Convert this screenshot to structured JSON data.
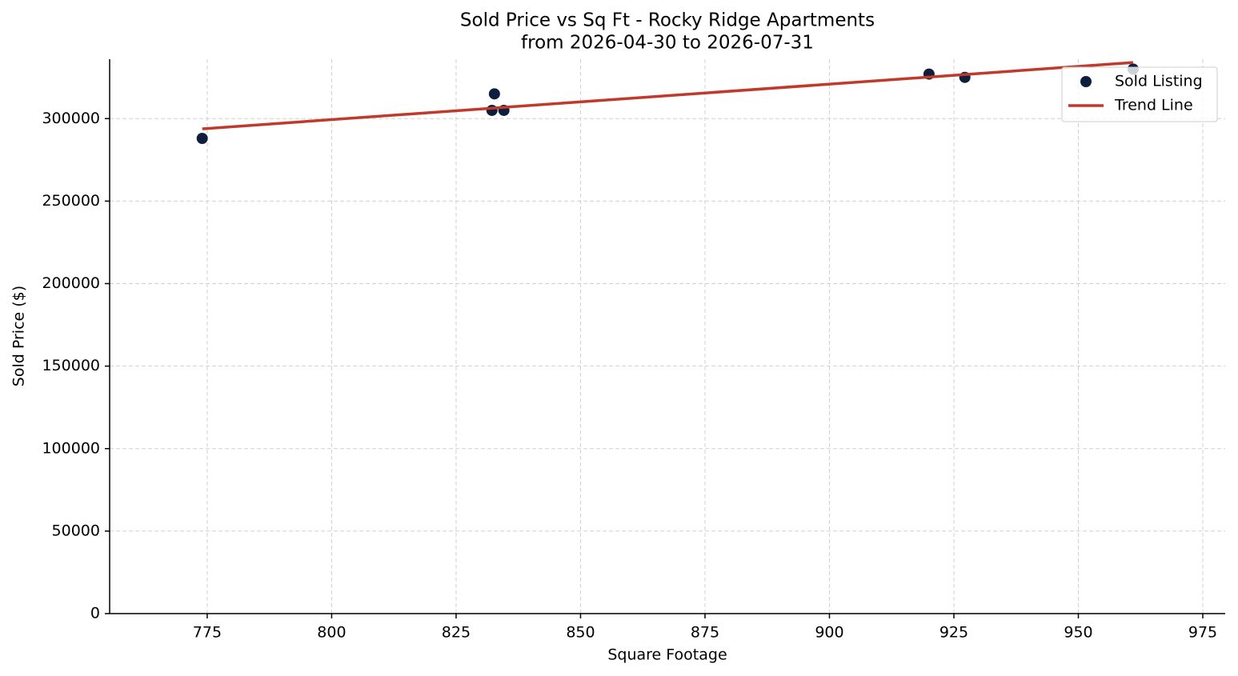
{
  "chart_data": {
    "type": "scatter",
    "title": "Sold Price vs Sq Ft - Rocky Ridge Apartments",
    "subtitle": "from 2026-04-30 to 2026-07-31",
    "x_label": "Square Footage",
    "y_label": "Sold Price ($)",
    "xlim": [
      755.4,
      979.5
    ],
    "xticks": [
      775,
      800,
      825,
      850,
      875,
      900,
      925,
      950,
      975
    ],
    "ylim": [
      0,
      336000
    ],
    "yticks": [
      0,
      50000,
      100000,
      150000,
      200000,
      250000,
      300000
    ],
    "grid": true,
    "legend": "upper right",
    "series": [
      {
        "name": "Sold Listing",
        "type": "scatter",
        "color": "#0d1f3c",
        "x": [
          774,
          832.2,
          832.7,
          834.6,
          920,
          927.2,
          961
        ],
        "values": [
          288000,
          305000,
          315000,
          305000,
          327000,
          325000,
          330000
        ]
      },
      {
        "name": "Trend Line",
        "type": "line",
        "color": "#c0392b",
        "x": [
          774,
          961
        ],
        "values": [
          293800,
          334000
        ]
      }
    ]
  }
}
